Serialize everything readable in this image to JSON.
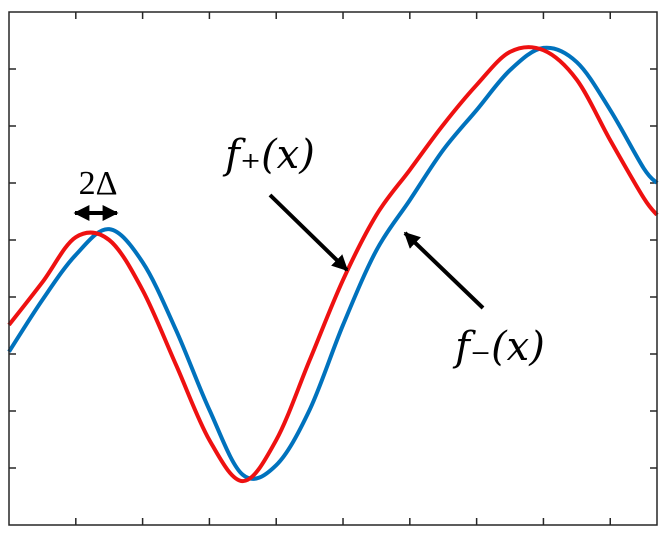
{
  "chart_data": {
    "type": "line",
    "annotations": [
      "2Δ",
      "f₊(x)",
      "f₋(x)"
    ],
    "x": [
      0,
      0.5,
      1,
      1.5,
      2,
      2.5,
      3,
      3.5,
      4,
      4.5,
      5,
      5.5,
      6,
      6.5,
      7,
      7.5,
      8,
      8.5,
      9,
      9.5,
      9.7
    ],
    "series": [
      {
        "color": "#0072bd",
        "values": [
          3.04,
          3.95,
          4.74,
          5.19,
          4.61,
          3.42,
          2.02,
          0.88,
          1.05,
          2.02,
          3.51,
          4.82,
          5.7,
          6.58,
          7.28,
          7.98,
          8.37,
          8.12,
          7.28,
          6.26,
          6.0
        ]
      },
      {
        "color": "#ee1111",
        "values": [
          3.51,
          4.26,
          5.05,
          5.0,
          4.12,
          2.81,
          1.49,
          0.77,
          1.49,
          2.89,
          4.3,
          5.44,
          6.23,
          7.02,
          7.72,
          8.3,
          8.33,
          7.81,
          6.75,
          5.74,
          5.44
        ]
      }
    ],
    "xlim": [
      0,
      9.7
    ],
    "ylim": [
      0,
      9
    ],
    "xticks": [
      1,
      2,
      3,
      4,
      5,
      6,
      7,
      8,
      9
    ],
    "yticks": [
      1,
      2,
      3,
      4,
      5,
      6,
      7,
      8
    ]
  }
}
